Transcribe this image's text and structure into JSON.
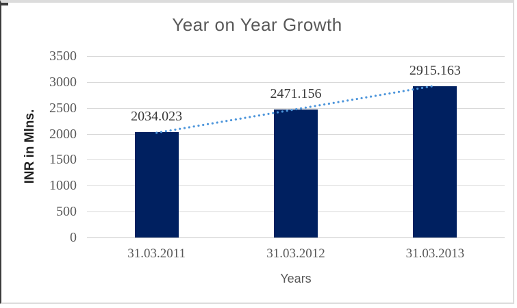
{
  "chart_data": {
    "type": "bar",
    "title": "Year on Year Growth",
    "categories": [
      "31.03.2011",
      "31.03.2012",
      "31.03.2013"
    ],
    "values": [
      2034.023,
      2471.156,
      2915.163
    ],
    "data_labels": [
      "2034.023",
      "2471.156",
      "2915.163"
    ],
    "xlabel": "Years",
    "ylabel": "INR in Mlns.",
    "ylim": [
      0,
      3500
    ],
    "yticks": [
      0,
      500,
      1000,
      1500,
      2000,
      2500,
      3000,
      3500
    ],
    "grid": true,
    "legend": "none",
    "trendline": {
      "type": "linear",
      "style": "dotted",
      "from_category": "31.03.2011",
      "to_category": "31.03.2013"
    }
  },
  "colors": {
    "bar": "#002060",
    "trendline": "#4C95DB",
    "gridline": "#D9D9D9",
    "axis_line": "#C6C6C6",
    "title_text": "#595959",
    "tick_text": "#595959",
    "data_label_text": "#3A3A3A",
    "x_axis_title_text": "#595959",
    "y_axis_title_text": "#1F1F1F",
    "background": "#FFFFFF"
  }
}
